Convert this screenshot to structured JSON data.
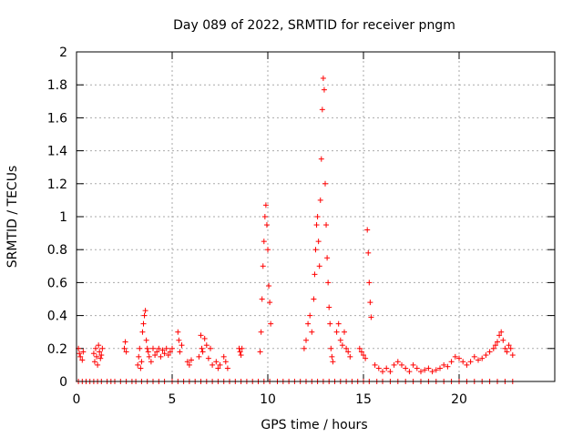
{
  "chart_data": {
    "type": "scatter",
    "title": "Day 089 of 2022, SRMTID for receiver pngm",
    "xlabel": "GPS time / hours",
    "ylabel": "SRMTID / TECUs",
    "xlim": [
      0,
      25
    ],
    "ylim": [
      0,
      2
    ],
    "xticks": [
      0,
      5,
      10,
      15,
      20
    ],
    "yticks": [
      0,
      0.2,
      0.4,
      0.6,
      0.8,
      1,
      1.2,
      1.4,
      1.6,
      1.8,
      2
    ],
    "ytick_labels": [
      "0",
      "0.2",
      "0.4",
      "0.6",
      "0.8",
      "1",
      "1.2",
      "1.4",
      "1.6",
      "1.8",
      "2"
    ],
    "grid": true,
    "marker": "+",
    "series_color": "#ff0000",
    "series": [
      {
        "name": "SRMTID",
        "points": [
          [
            0.1,
            0.2
          ],
          [
            0.15,
            0.17
          ],
          [
            0.2,
            0.15
          ],
          [
            0.3,
            0.13
          ],
          [
            0.35,
            0.18
          ],
          [
            0.9,
            0.17
          ],
          [
            0.95,
            0.12
          ],
          [
            1.0,
            0.2
          ],
          [
            1.05,
            0.15
          ],
          [
            1.1,
            0.1
          ],
          [
            1.15,
            0.22
          ],
          [
            1.2,
            0.18
          ],
          [
            1.25,
            0.14
          ],
          [
            1.3,
            0.16
          ],
          [
            1.35,
            0.2
          ],
          [
            2.5,
            0.2
          ],
          [
            2.55,
            0.24
          ],
          [
            2.6,
            0.18
          ],
          [
            3.2,
            0.1
          ],
          [
            3.25,
            0.15
          ],
          [
            3.3,
            0.2
          ],
          [
            3.35,
            0.08
          ],
          [
            3.4,
            0.12
          ],
          [
            3.45,
            0.3
          ],
          [
            3.5,
            0.35
          ],
          [
            3.55,
            0.4
          ],
          [
            3.6,
            0.43
          ],
          [
            3.65,
            0.25
          ],
          [
            3.7,
            0.2
          ],
          [
            3.75,
            0.18
          ],
          [
            3.8,
            0.15
          ],
          [
            3.9,
            0.12
          ],
          [
            4.0,
            0.2
          ],
          [
            4.1,
            0.16
          ],
          [
            4.2,
            0.18
          ],
          [
            4.3,
            0.2
          ],
          [
            4.4,
            0.15
          ],
          [
            4.5,
            0.19
          ],
          [
            4.6,
            0.17
          ],
          [
            4.7,
            0.2
          ],
          [
            4.8,
            0.16
          ],
          [
            4.9,
            0.18
          ],
          [
            5.0,
            0.2
          ],
          [
            5.3,
            0.3
          ],
          [
            5.35,
            0.25
          ],
          [
            5.4,
            0.18
          ],
          [
            5.5,
            0.22
          ],
          [
            5.8,
            0.12
          ],
          [
            5.9,
            0.1
          ],
          [
            6.0,
            0.13
          ],
          [
            6.4,
            0.15
          ],
          [
            6.5,
            0.28
          ],
          [
            6.55,
            0.2
          ],
          [
            6.6,
            0.18
          ],
          [
            6.7,
            0.26
          ],
          [
            6.8,
            0.22
          ],
          [
            6.9,
            0.14
          ],
          [
            7.0,
            0.2
          ],
          [
            7.1,
            0.1
          ],
          [
            7.3,
            0.12
          ],
          [
            7.4,
            0.08
          ],
          [
            7.5,
            0.1
          ],
          [
            7.7,
            0.15
          ],
          [
            7.8,
            0.12
          ],
          [
            7.9,
            0.08
          ],
          [
            8.5,
            0.2
          ],
          [
            8.55,
            0.18
          ],
          [
            8.6,
            0.16
          ],
          [
            8.65,
            0.2
          ],
          [
            9.6,
            0.18
          ],
          [
            9.65,
            0.3
          ],
          [
            9.7,
            0.5
          ],
          [
            9.75,
            0.7
          ],
          [
            9.8,
            0.85
          ],
          [
            9.85,
            1.0
          ],
          [
            9.9,
            1.07
          ],
          [
            9.95,
            0.95
          ],
          [
            10.0,
            0.8
          ],
          [
            10.05,
            0.58
          ],
          [
            10.1,
            0.48
          ],
          [
            10.15,
            0.35
          ],
          [
            11.9,
            0.2
          ],
          [
            12.0,
            0.25
          ],
          [
            12.1,
            0.35
          ],
          [
            12.2,
            0.4
          ],
          [
            12.3,
            0.3
          ],
          [
            12.4,
            0.5
          ],
          [
            12.45,
            0.65
          ],
          [
            12.5,
            0.8
          ],
          [
            12.55,
            0.95
          ],
          [
            12.6,
            1.0
          ],
          [
            12.65,
            0.85
          ],
          [
            12.7,
            0.7
          ],
          [
            12.75,
            1.1
          ],
          [
            12.8,
            1.35
          ],
          [
            12.85,
            1.65
          ],
          [
            12.9,
            1.84
          ],
          [
            12.95,
            1.77
          ],
          [
            13.0,
            1.2
          ],
          [
            13.05,
            0.95
          ],
          [
            13.1,
            0.75
          ],
          [
            13.15,
            0.6
          ],
          [
            13.2,
            0.45
          ],
          [
            13.25,
            0.35
          ],
          [
            13.3,
            0.2
          ],
          [
            13.35,
            0.15
          ],
          [
            13.4,
            0.12
          ],
          [
            13.6,
            0.3
          ],
          [
            13.7,
            0.35
          ],
          [
            13.8,
            0.25
          ],
          [
            13.9,
            0.22
          ],
          [
            14.0,
            0.3
          ],
          [
            14.1,
            0.2
          ],
          [
            14.2,
            0.18
          ],
          [
            14.3,
            0.15
          ],
          [
            14.8,
            0.2
          ],
          [
            14.9,
            0.18
          ],
          [
            15.0,
            0.16
          ],
          [
            15.1,
            0.14
          ],
          [
            15.2,
            0.92
          ],
          [
            15.25,
            0.78
          ],
          [
            15.3,
            0.6
          ],
          [
            15.35,
            0.48
          ],
          [
            15.4,
            0.39
          ],
          [
            15.6,
            0.1
          ],
          [
            15.8,
            0.08
          ],
          [
            16.0,
            0.06
          ],
          [
            16.2,
            0.08
          ],
          [
            16.4,
            0.06
          ],
          [
            16.6,
            0.1
          ],
          [
            16.8,
            0.12
          ],
          [
            17.0,
            0.1
          ],
          [
            17.2,
            0.08
          ],
          [
            17.4,
            0.06
          ],
          [
            17.6,
            0.1
          ],
          [
            17.8,
            0.08
          ],
          [
            18.0,
            0.06
          ],
          [
            18.2,
            0.07
          ],
          [
            18.4,
            0.08
          ],
          [
            18.6,
            0.06
          ],
          [
            18.8,
            0.07
          ],
          [
            19.0,
            0.08
          ],
          [
            19.2,
            0.1
          ],
          [
            19.4,
            0.09
          ],
          [
            19.6,
            0.12
          ],
          [
            19.8,
            0.15
          ],
          [
            20.0,
            0.14
          ],
          [
            20.2,
            0.12
          ],
          [
            20.4,
            0.1
          ],
          [
            20.6,
            0.12
          ],
          [
            20.8,
            0.15
          ],
          [
            21.0,
            0.13
          ],
          [
            21.2,
            0.14
          ],
          [
            21.4,
            0.16
          ],
          [
            21.6,
            0.18
          ],
          [
            21.8,
            0.2
          ],
          [
            21.9,
            0.22
          ],
          [
            22.0,
            0.24
          ],
          [
            22.1,
            0.28
          ],
          [
            22.2,
            0.3
          ],
          [
            22.3,
            0.25
          ],
          [
            22.4,
            0.2
          ],
          [
            22.5,
            0.18
          ],
          [
            22.6,
            0.22
          ],
          [
            22.7,
            0.2
          ],
          [
            22.8,
            0.16
          ]
        ],
        "zero_points_x": [
          0.1,
          0.3,
          0.5,
          0.7,
          0.9,
          1.1,
          1.3,
          1.6,
          1.8,
          2.0,
          2.3,
          2.6,
          2.9,
          3.1,
          3.4,
          3.7,
          4.0,
          4.3,
          4.6,
          5.0,
          5.3,
          5.6,
          5.9,
          6.2,
          6.5,
          6.8,
          7.1,
          7.4,
          7.7,
          8.0,
          8.3,
          8.6,
          8.9,
          9.2,
          9.5,
          9.8,
          10.1,
          10.5,
          10.8,
          11.1,
          11.4,
          11.7,
          12.0,
          12.3,
          12.6,
          12.9,
          13.2,
          13.5,
          13.8,
          14.1,
          14.4,
          14.7,
          15.0,
          15.3,
          15.7,
          16.0,
          16.4,
          16.8,
          17.2,
          17.6,
          18.0,
          18.4,
          18.8,
          19.2,
          19.6,
          20.0,
          20.4,
          20.8,
          21.2,
          21.6,
          22.0,
          22.4,
          22.8
        ]
      }
    ]
  }
}
